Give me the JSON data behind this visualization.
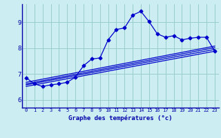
{
  "xlabel": "Graphe des températures (°c)",
  "bg_color": "#cceef2",
  "line_color": "#0000cc",
  "grid_color": "#99cccc",
  "axis_color": "#0000aa",
  "text_color": "#0000aa",
  "xlim": [
    -0.5,
    23.5
  ],
  "ylim": [
    5.7,
    9.7
  ],
  "xticks": [
    0,
    1,
    2,
    3,
    4,
    5,
    6,
    7,
    8,
    9,
    10,
    11,
    12,
    13,
    14,
    15,
    16,
    17,
    18,
    19,
    20,
    21,
    22,
    23
  ],
  "yticks": [
    6,
    7,
    8,
    9
  ],
  "main_series": {
    "x": [
      0,
      1,
      2,
      3,
      4,
      5,
      6,
      7,
      8,
      9,
      10,
      11,
      12,
      13,
      14,
      15,
      16,
      17,
      18,
      19,
      20,
      21,
      22,
      23
    ],
    "y": [
      6.85,
      6.62,
      6.52,
      6.58,
      6.62,
      6.68,
      6.88,
      7.32,
      7.58,
      7.62,
      8.32,
      8.72,
      8.78,
      9.28,
      9.42,
      9.02,
      8.55,
      8.42,
      8.48,
      8.32,
      8.38,
      8.42,
      8.42,
      7.88
    ]
  },
  "linear_lines": [
    {
      "x0": 0,
      "y0": 6.52,
      "x1": 23,
      "y1": 7.88
    },
    {
      "x0": 0,
      "y0": 6.58,
      "x1": 23,
      "y1": 7.95
    },
    {
      "x0": 0,
      "y0": 6.62,
      "x1": 23,
      "y1": 8.02
    },
    {
      "x0": 0,
      "y0": 6.68,
      "x1": 23,
      "y1": 8.08
    }
  ]
}
